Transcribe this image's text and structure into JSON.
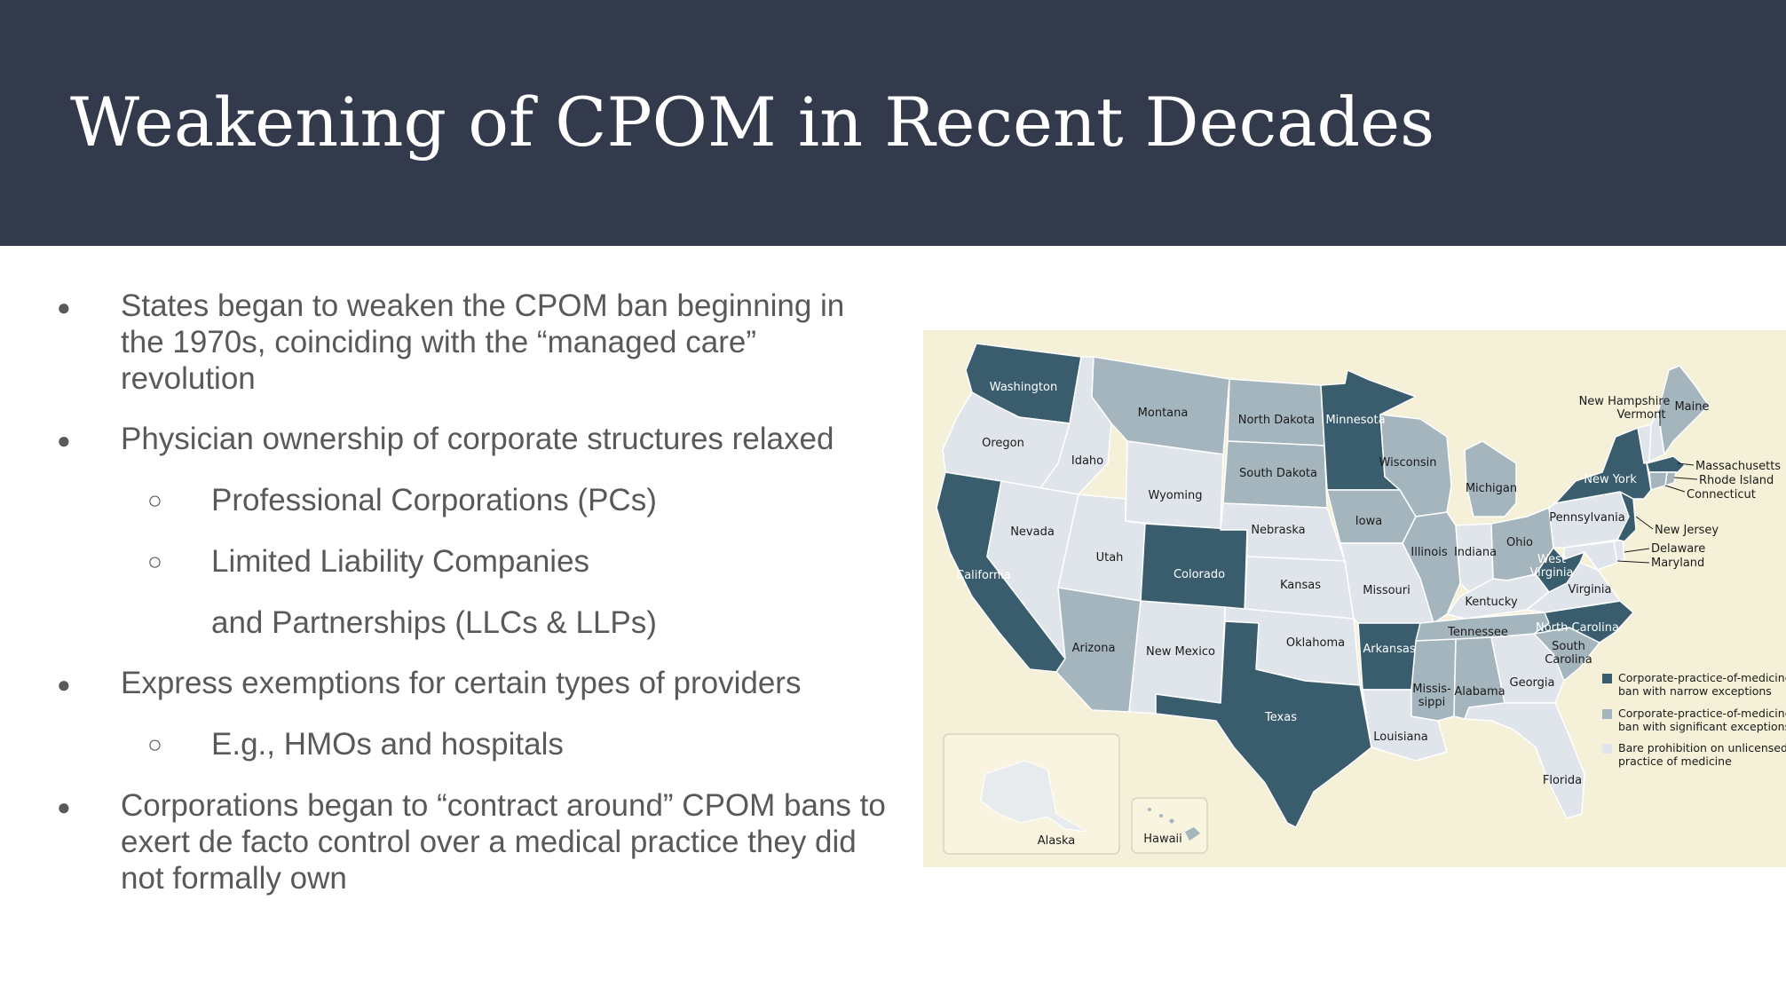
{
  "slide": {
    "title": "Weakening of CPOM in Recent Decades",
    "colors": {
      "header_bg": "#323a4c",
      "title_text": "#ffffff",
      "body_text": "#595959"
    }
  },
  "bullets": [
    {
      "level": 1,
      "text": "States began to weaken the CPOM ban beginning in the 1970s, coinciding with the “managed care” revolution"
    },
    {
      "level": 1,
      "text": "Physician ownership of corporate structures relaxed"
    },
    {
      "level": 2,
      "text": "Professional Corporations (PCs)"
    },
    {
      "level": 2,
      "text": "Limited Liability Companies"
    },
    {
      "level": 2,
      "text": "and Partnerships (LLCs & LLPs)"
    },
    {
      "level": 1,
      "text": "Express exemptions for certain types of providers"
    },
    {
      "level": 2,
      "text": "E.g., HMOs and hospitals"
    },
    {
      "level": 1,
      "text": "Corporations began to “contract around” CPOM bans to exert de facto control over a medical practice they did not formally own"
    }
  ],
  "markers": {
    "level1": "●",
    "level2": "○"
  },
  "map": {
    "colors": {
      "background": "#f5f0d8",
      "narrow": "#3a5d6e",
      "significant": "#a4b5bd",
      "bare": "#dfe5ea",
      "border": "#ffffff"
    },
    "states": {
      "washington": "Washington",
      "oregon": "Oregon",
      "california": "California",
      "idaho": "Idaho",
      "nevada": "Nevada",
      "montana": "Montana",
      "wyoming": "Wyoming",
      "utah": "Utah",
      "arizona": "Arizona",
      "colorado": "Colorado",
      "new_mexico": "New Mexico",
      "north_dakota": "North Dakota",
      "south_dakota": "South Dakota",
      "nebraska": "Nebraska",
      "kansas": "Kansas",
      "oklahoma": "Oklahoma",
      "texas": "Texas",
      "minnesota": "Minnesota",
      "iowa": "Iowa",
      "missouri": "Missouri",
      "arkansas": "Arkansas",
      "louisiana": "Louisiana",
      "wisconsin": "Wisconsin",
      "illinois": "Illinois",
      "michigan": "Michigan",
      "indiana": "Indiana",
      "ohio": "Ohio",
      "kentucky": "Kentucky",
      "tennessee": "Tennessee",
      "mississippi_1": "Missis-",
      "mississippi_2": "sippi",
      "alabama": "Alabama",
      "georgia": "Georgia",
      "florida": "Florida",
      "south_carolina_1": "South",
      "south_carolina_2": "Carolina",
      "north_carolina": "North Carolina",
      "virginia": "Virginia",
      "west_virginia_1": "West",
      "west_virginia_2": "Virginia",
      "pennsylvania": "Pennsylvania",
      "new_york": "New York",
      "maine": "Maine",
      "new_hampshire": "New Hampshire",
      "vermont": "Vermont",
      "massachusetts": "Massachusetts",
      "rhode_island": "Rhode Island",
      "connecticut": "Connecticut",
      "new_jersey": "New Jersey",
      "delaware": "Delaware",
      "maryland": "Maryland",
      "alaska": "Alaska",
      "hawaii": "Hawaii"
    },
    "legend": [
      {
        "line1": "Corporate-practice-of-medicine",
        "line2": "ban with narrow exceptions"
      },
      {
        "line1": "Corporate-practice-of-medicine",
        "line2": "ban with significant exceptions"
      },
      {
        "line1": "Bare prohibition on unlicensed",
        "line2": "practice of medicine"
      }
    ]
  }
}
